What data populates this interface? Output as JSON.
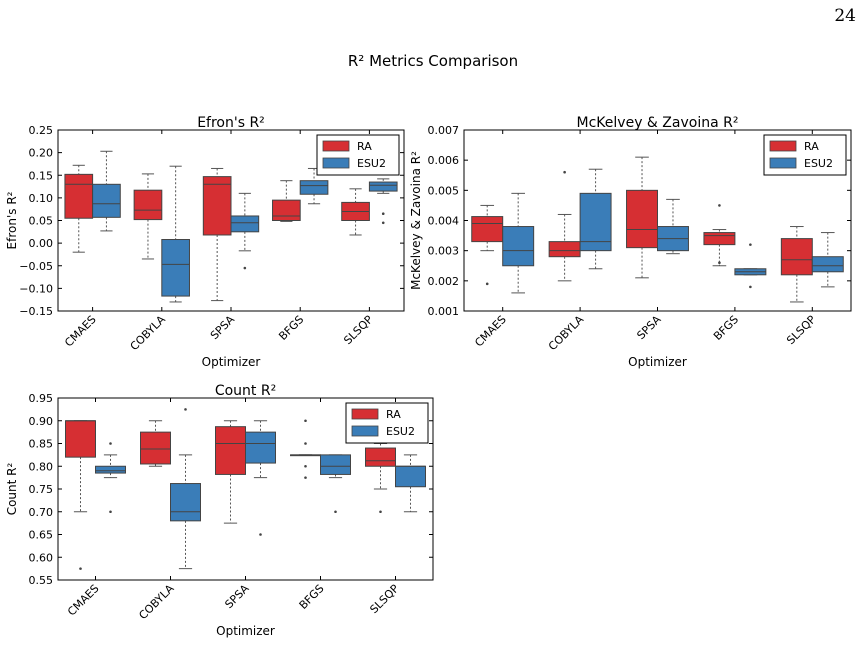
{
  "page_number": "24",
  "figure_title": "R² Metrics Comparison",
  "colors": {
    "RA": "#d62f33",
    "ESU2": "#3a7db8"
  },
  "chart_data": [
    {
      "id": "efron",
      "type": "box",
      "title": "Efron's R²",
      "xlabel": "Optimizer",
      "ylabel": "Efron's R²",
      "ylim": [
        -0.15,
        0.25
      ],
      "yticks": [
        "0.25",
        "0.20",
        "0.15",
        "0.10",
        "0.05",
        "0.00",
        "−0.05",
        "−0.10",
        "−0.15"
      ],
      "ytick_values": [
        0.25,
        0.2,
        0.15,
        0.1,
        0.05,
        0.0,
        -0.05,
        -0.1,
        -0.15
      ],
      "categories": [
        "CMAES",
        "COBYLA",
        "SPSA",
        "BFGS",
        "SLSQP"
      ],
      "legend": {
        "position": "upper right",
        "entries": [
          "RA",
          "ESU2"
        ]
      },
      "series": [
        {
          "name": "RA",
          "boxes": [
            {
              "whislo": -0.02,
              "q1": 0.055,
              "med": 0.13,
              "q3": 0.152,
              "whishi": 0.172,
              "fliers": []
            },
            {
              "whislo": -0.035,
              "q1": 0.052,
              "med": 0.073,
              "q3": 0.117,
              "whishi": 0.153,
              "fliers": []
            },
            {
              "whislo": -0.127,
              "q1": 0.018,
              "med": 0.13,
              "q3": 0.147,
              "whishi": 0.165,
              "fliers": []
            },
            {
              "whislo": 0.048,
              "q1": 0.05,
              "med": 0.06,
              "q3": 0.095,
              "whishi": 0.138,
              "fliers": []
            },
            {
              "whislo": 0.018,
              "q1": 0.05,
              "med": 0.07,
              "q3": 0.09,
              "whishi": 0.12,
              "fliers": []
            }
          ]
        },
        {
          "name": "ESU2",
          "boxes": [
            {
              "whislo": 0.027,
              "q1": 0.057,
              "med": 0.087,
              "q3": 0.13,
              "whishi": 0.203,
              "fliers": []
            },
            {
              "whislo": -0.13,
              "q1": -0.117,
              "med": -0.047,
              "q3": 0.008,
              "whishi": 0.17,
              "fliers": []
            },
            {
              "whislo": -0.017,
              "q1": 0.025,
              "med": 0.045,
              "q3": 0.06,
              "whishi": 0.11,
              "fliers": [
                -0.055
              ]
            },
            {
              "whislo": 0.087,
              "q1": 0.108,
              "med": 0.127,
              "q3": 0.138,
              "whishi": 0.165,
              "fliers": []
            },
            {
              "whislo": 0.11,
              "q1": 0.115,
              "med": 0.128,
              "q3": 0.135,
              "whishi": 0.142,
              "fliers": [
                0.065,
                0.045
              ]
            }
          ]
        }
      ]
    },
    {
      "id": "mckelvey",
      "type": "box",
      "title": "McKelvey & Zavoina R²",
      "xlabel": "Optimizer",
      "ylabel": "McKelvey & Zavoina R²",
      "ylim": [
        0.001,
        0.007
      ],
      "yticks": [
        "0.007",
        "0.006",
        "0.005",
        "0.004",
        "0.003",
        "0.002",
        "0.001"
      ],
      "ytick_values": [
        0.007,
        0.006,
        0.005,
        0.004,
        0.003,
        0.002,
        0.001
      ],
      "categories": [
        "CMAES",
        "COBYLA",
        "SPSA",
        "BFGS",
        "SLSQP"
      ],
      "legend": {
        "position": "upper right",
        "entries": [
          "RA",
          "ESU2"
        ]
      },
      "series": [
        {
          "name": "RA",
          "boxes": [
            {
              "whislo": 0.003,
              "q1": 0.0033,
              "med": 0.0039,
              "q3": 0.00413,
              "whishi": 0.0045,
              "fliers": [
                0.0019
              ]
            },
            {
              "whislo": 0.002,
              "q1": 0.0028,
              "med": 0.003,
              "q3": 0.0033,
              "whishi": 0.0042,
              "fliers": [
                0.0056
              ]
            },
            {
              "whislo": 0.0021,
              "q1": 0.0031,
              "med": 0.0037,
              "q3": 0.005,
              "whishi": 0.0061,
              "fliers": []
            },
            {
              "whislo": 0.0025,
              "q1": 0.0032,
              "med": 0.0035,
              "q3": 0.0036,
              "whishi": 0.0037,
              "fliers": [
                0.0045,
                0.0026
              ]
            },
            {
              "whislo": 0.0013,
              "q1": 0.0022,
              "med": 0.0027,
              "q3": 0.0034,
              "whishi": 0.0038,
              "fliers": []
            }
          ]
        },
        {
          "name": "ESU2",
          "boxes": [
            {
              "whislo": 0.0016,
              "q1": 0.0025,
              "med": 0.003,
              "q3": 0.0038,
              "whishi": 0.0049,
              "fliers": []
            },
            {
              "whislo": 0.0024,
              "q1": 0.003,
              "med": 0.0033,
              "q3": 0.0049,
              "whishi": 0.0057,
              "fliers": []
            },
            {
              "whislo": 0.0029,
              "q1": 0.003,
              "med": 0.0034,
              "q3": 0.0038,
              "whishi": 0.0047,
              "fliers": []
            },
            {
              "whislo": 0.0022,
              "q1": 0.0022,
              "med": 0.0023,
              "q3": 0.0024,
              "whishi": 0.0024,
              "fliers": [
                0.0032,
                0.0018
              ]
            },
            {
              "whislo": 0.0018,
              "q1": 0.0023,
              "med": 0.0025,
              "q3": 0.0028,
              "whishi": 0.0036,
              "fliers": []
            }
          ]
        }
      ]
    },
    {
      "id": "count",
      "type": "box",
      "title": "Count R²",
      "xlabel": "Optimizer",
      "ylabel": "Count R²",
      "ylim": [
        0.55,
        0.95
      ],
      "yticks": [
        "0.95",
        "0.90",
        "0.85",
        "0.80",
        "0.75",
        "0.70",
        "0.65",
        "0.60",
        "0.55"
      ],
      "ytick_values": [
        0.95,
        0.9,
        0.85,
        0.8,
        0.75,
        0.7,
        0.65,
        0.6,
        0.55
      ],
      "categories": [
        "CMAES",
        "COBYLA",
        "SPSA",
        "BFGS",
        "SLSQP"
      ],
      "legend": {
        "position": "upper right",
        "entries": [
          "RA",
          "ESU2"
        ]
      },
      "series": [
        {
          "name": "RA",
          "boxes": [
            {
              "whislo": 0.7,
              "q1": 0.82,
              "med": 0.9,
              "q3": 0.9,
              "whishi": 0.9,
              "fliers": [
                0.575
              ]
            },
            {
              "whislo": 0.8,
              "q1": 0.805,
              "med": 0.838,
              "q3": 0.875,
              "whishi": 0.9,
              "fliers": []
            },
            {
              "whislo": 0.675,
              "q1": 0.782,
              "med": 0.85,
              "q3": 0.887,
              "whishi": 0.9,
              "fliers": []
            },
            {
              "whislo": 0.825,
              "q1": 0.825,
              "med": 0.825,
              "q3": 0.825,
              "whishi": 0.825,
              "fliers": [
                0.9,
                0.85,
                0.8,
                0.775
              ]
            },
            {
              "whislo": 0.75,
              "q1": 0.8,
              "med": 0.812,
              "q3": 0.84,
              "whishi": 0.85,
              "fliers": [
                0.7
              ]
            }
          ]
        },
        {
          "name": "ESU2",
          "boxes": [
            {
              "whislo": 0.775,
              "q1": 0.785,
              "med": 0.79,
              "q3": 0.8,
              "whishi": 0.825,
              "fliers": [
                0.85,
                0.7
              ]
            },
            {
              "whislo": 0.575,
              "q1": 0.68,
              "med": 0.7,
              "q3": 0.762,
              "whishi": 0.825,
              "fliers": [
                0.925
              ]
            },
            {
              "whislo": 0.775,
              "q1": 0.807,
              "med": 0.85,
              "q3": 0.875,
              "whishi": 0.9,
              "fliers": [
                0.65
              ]
            },
            {
              "whislo": 0.775,
              "q1": 0.782,
              "med": 0.8,
              "q3": 0.825,
              "whishi": 0.825,
              "fliers": [
                0.7
              ]
            },
            {
              "whislo": 0.7,
              "q1": 0.755,
              "med": 0.8,
              "q3": 0.8,
              "whishi": 0.825,
              "fliers": []
            }
          ]
        }
      ]
    }
  ]
}
